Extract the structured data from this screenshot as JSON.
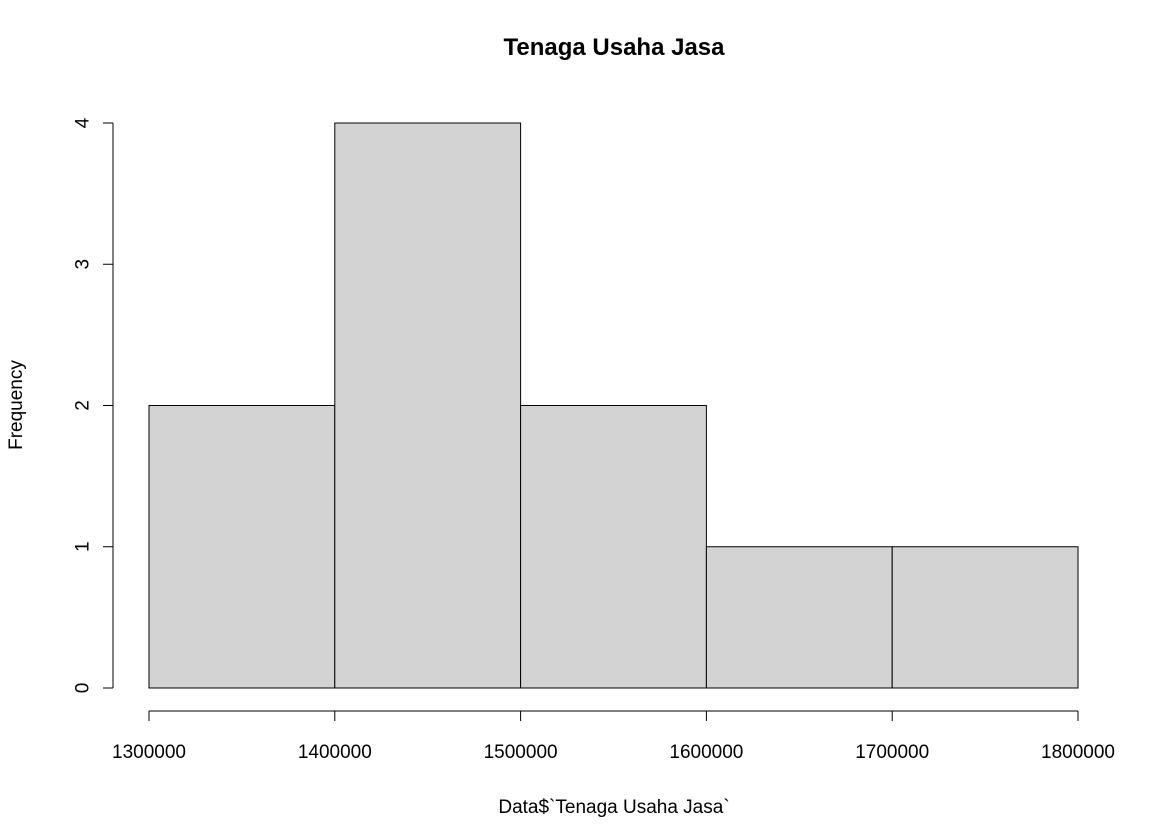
{
  "chart_data": {
    "type": "bar",
    "title": "Tenaga Usaha Jasa",
    "xlabel": "Data$`Tenaga Usaha Jasa`",
    "ylabel": "Frequency",
    "bins": [
      {
        "start": 1300000,
        "end": 1400000,
        "count": 2
      },
      {
        "start": 1400000,
        "end": 1500000,
        "count": 4
      },
      {
        "start": 1500000,
        "end": 1600000,
        "count": 2
      },
      {
        "start": 1600000,
        "end": 1700000,
        "count": 1
      },
      {
        "start": 1700000,
        "end": 1800000,
        "count": 1
      }
    ],
    "xlim": [
      1300000,
      1800000
    ],
    "ylim": [
      0,
      4
    ],
    "x_ticks": [
      "1300000",
      "1400000",
      "1500000",
      "1600000",
      "1700000",
      "1800000"
    ],
    "y_ticks": [
      "0",
      "1",
      "2",
      "3",
      "4"
    ],
    "grid": false,
    "legend": "none",
    "bar_color": "#d3d3d3",
    "edge_color": "#000000"
  }
}
